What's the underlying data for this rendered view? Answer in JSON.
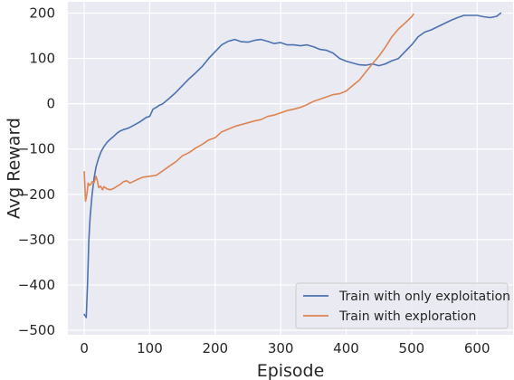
{
  "chart_data": {
    "type": "line",
    "title": "",
    "xlabel": "Episode",
    "ylabel": "Avg Reward",
    "xlim": [
      -25,
      655
    ],
    "ylim": [
      -510,
      225
    ],
    "xticks": [
      0,
      100,
      200,
      300,
      400,
      500,
      600
    ],
    "yticks": [
      -500,
      -400,
      -300,
      -200,
      -100,
      0,
      100,
      200
    ],
    "xtick_labels": [
      "0",
      "100",
      "200",
      "300",
      "400",
      "500",
      "600"
    ],
    "ytick_labels": [
      "−500",
      "−400",
      "−300",
      "−200",
      "−100",
      "0",
      "100",
      "200"
    ],
    "grid": true,
    "background": "#EAEAF2",
    "grid_color": "#FFFFFF",
    "legend_position": "lower-right",
    "series": [
      {
        "name": "Train with only exploitation",
        "color": "#4C72B0",
        "x": [
          0,
          3,
          5,
          7,
          9,
          12,
          15,
          18,
          22,
          26,
          30,
          35,
          40,
          45,
          50,
          55,
          60,
          65,
          70,
          75,
          80,
          85,
          90,
          95,
          100,
          105,
          110,
          115,
          120,
          130,
          140,
          150,
          160,
          170,
          180,
          190,
          200,
          210,
          220,
          230,
          240,
          250,
          260,
          270,
          280,
          290,
          300,
          310,
          320,
          330,
          340,
          350,
          360,
          370,
          380,
          390,
          400,
          410,
          420,
          430,
          440,
          450,
          460,
          470,
          480,
          490,
          500,
          510,
          520,
          530,
          540,
          550,
          560,
          570,
          580,
          590,
          600,
          610,
          620,
          630,
          636
        ],
        "y": [
          -465,
          -472,
          -400,
          -300,
          -250,
          -200,
          -165,
          -140,
          -120,
          -105,
          -95,
          -85,
          -78,
          -72,
          -65,
          -60,
          -57,
          -55,
          -52,
          -48,
          -44,
          -40,
          -35,
          -30,
          -28,
          -12,
          -8,
          -3,
          0,
          12,
          25,
          40,
          55,
          68,
          82,
          100,
          115,
          130,
          138,
          142,
          137,
          136,
          140,
          142,
          138,
          133,
          135,
          130,
          130,
          128,
          130,
          126,
          120,
          118,
          112,
          100,
          94,
          90,
          86,
          85,
          88,
          84,
          88,
          95,
          100,
          115,
          130,
          148,
          158,
          163,
          170,
          177,
          184,
          190,
          195,
          195,
          195,
          192,
          190,
          193,
          200
        ]
      },
      {
        "name": "Train with exploration",
        "color": "#DD8452",
        "x": [
          0,
          2,
          4,
          6,
          8,
          10,
          12,
          15,
          18,
          20,
          22,
          25,
          28,
          30,
          35,
          40,
          45,
          50,
          55,
          60,
          65,
          70,
          80,
          90,
          100,
          110,
          120,
          130,
          140,
          150,
          160,
          170,
          180,
          190,
          200,
          210,
          220,
          230,
          240,
          250,
          260,
          270,
          280,
          290,
          300,
          310,
          320,
          330,
          340,
          350,
          360,
          370,
          380,
          390,
          400,
          410,
          420,
          430,
          440,
          450,
          460,
          470,
          480,
          490,
          500,
          503
        ],
        "y": [
          -150,
          -215,
          -200,
          -175,
          -180,
          -178,
          -172,
          -175,
          -160,
          -170,
          -185,
          -182,
          -190,
          -183,
          -188,
          -190,
          -187,
          -182,
          -178,
          -172,
          -170,
          -175,
          -168,
          -162,
          -160,
          -158,
          -148,
          -138,
          -128,
          -115,
          -108,
          -98,
          -90,
          -80,
          -75,
          -62,
          -56,
          -50,
          -46,
          -42,
          -38,
          -35,
          -28,
          -25,
          -20,
          -15,
          -12,
          -8,
          -2,
          5,
          10,
          15,
          20,
          22,
          28,
          40,
          52,
          70,
          88,
          105,
          125,
          148,
          165,
          178,
          192,
          198
        ]
      }
    ]
  }
}
